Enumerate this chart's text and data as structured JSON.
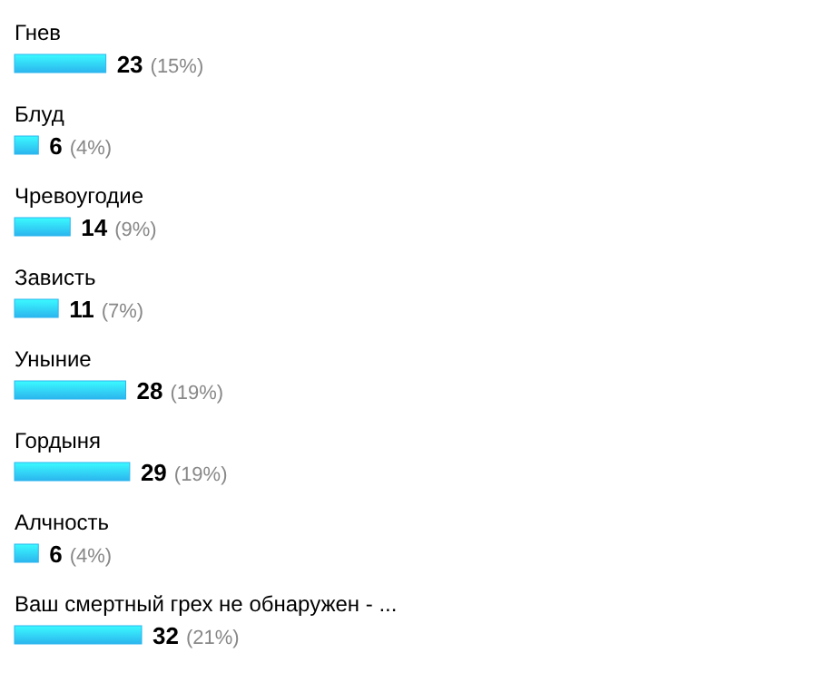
{
  "chart_data": {
    "type": "bar",
    "orientation": "horizontal",
    "categories": [
      "Гнев",
      "Блуд",
      "Чревоугодие",
      "Зависть",
      "Уныние",
      "Гордыня",
      "Алчность",
      "Ваш смертный грех не обнаружен - ..."
    ],
    "values": [
      23,
      6,
      14,
      11,
      28,
      29,
      6,
      32
    ],
    "value_labels": [
      "23 (15%)",
      "6 (4%)",
      "14 (9%)",
      "11 (7%)",
      "28 (19%)",
      "29 (19%)",
      "6 (4%)",
      "32 (21%)"
    ],
    "color": "#2bb5ee"
  }
}
